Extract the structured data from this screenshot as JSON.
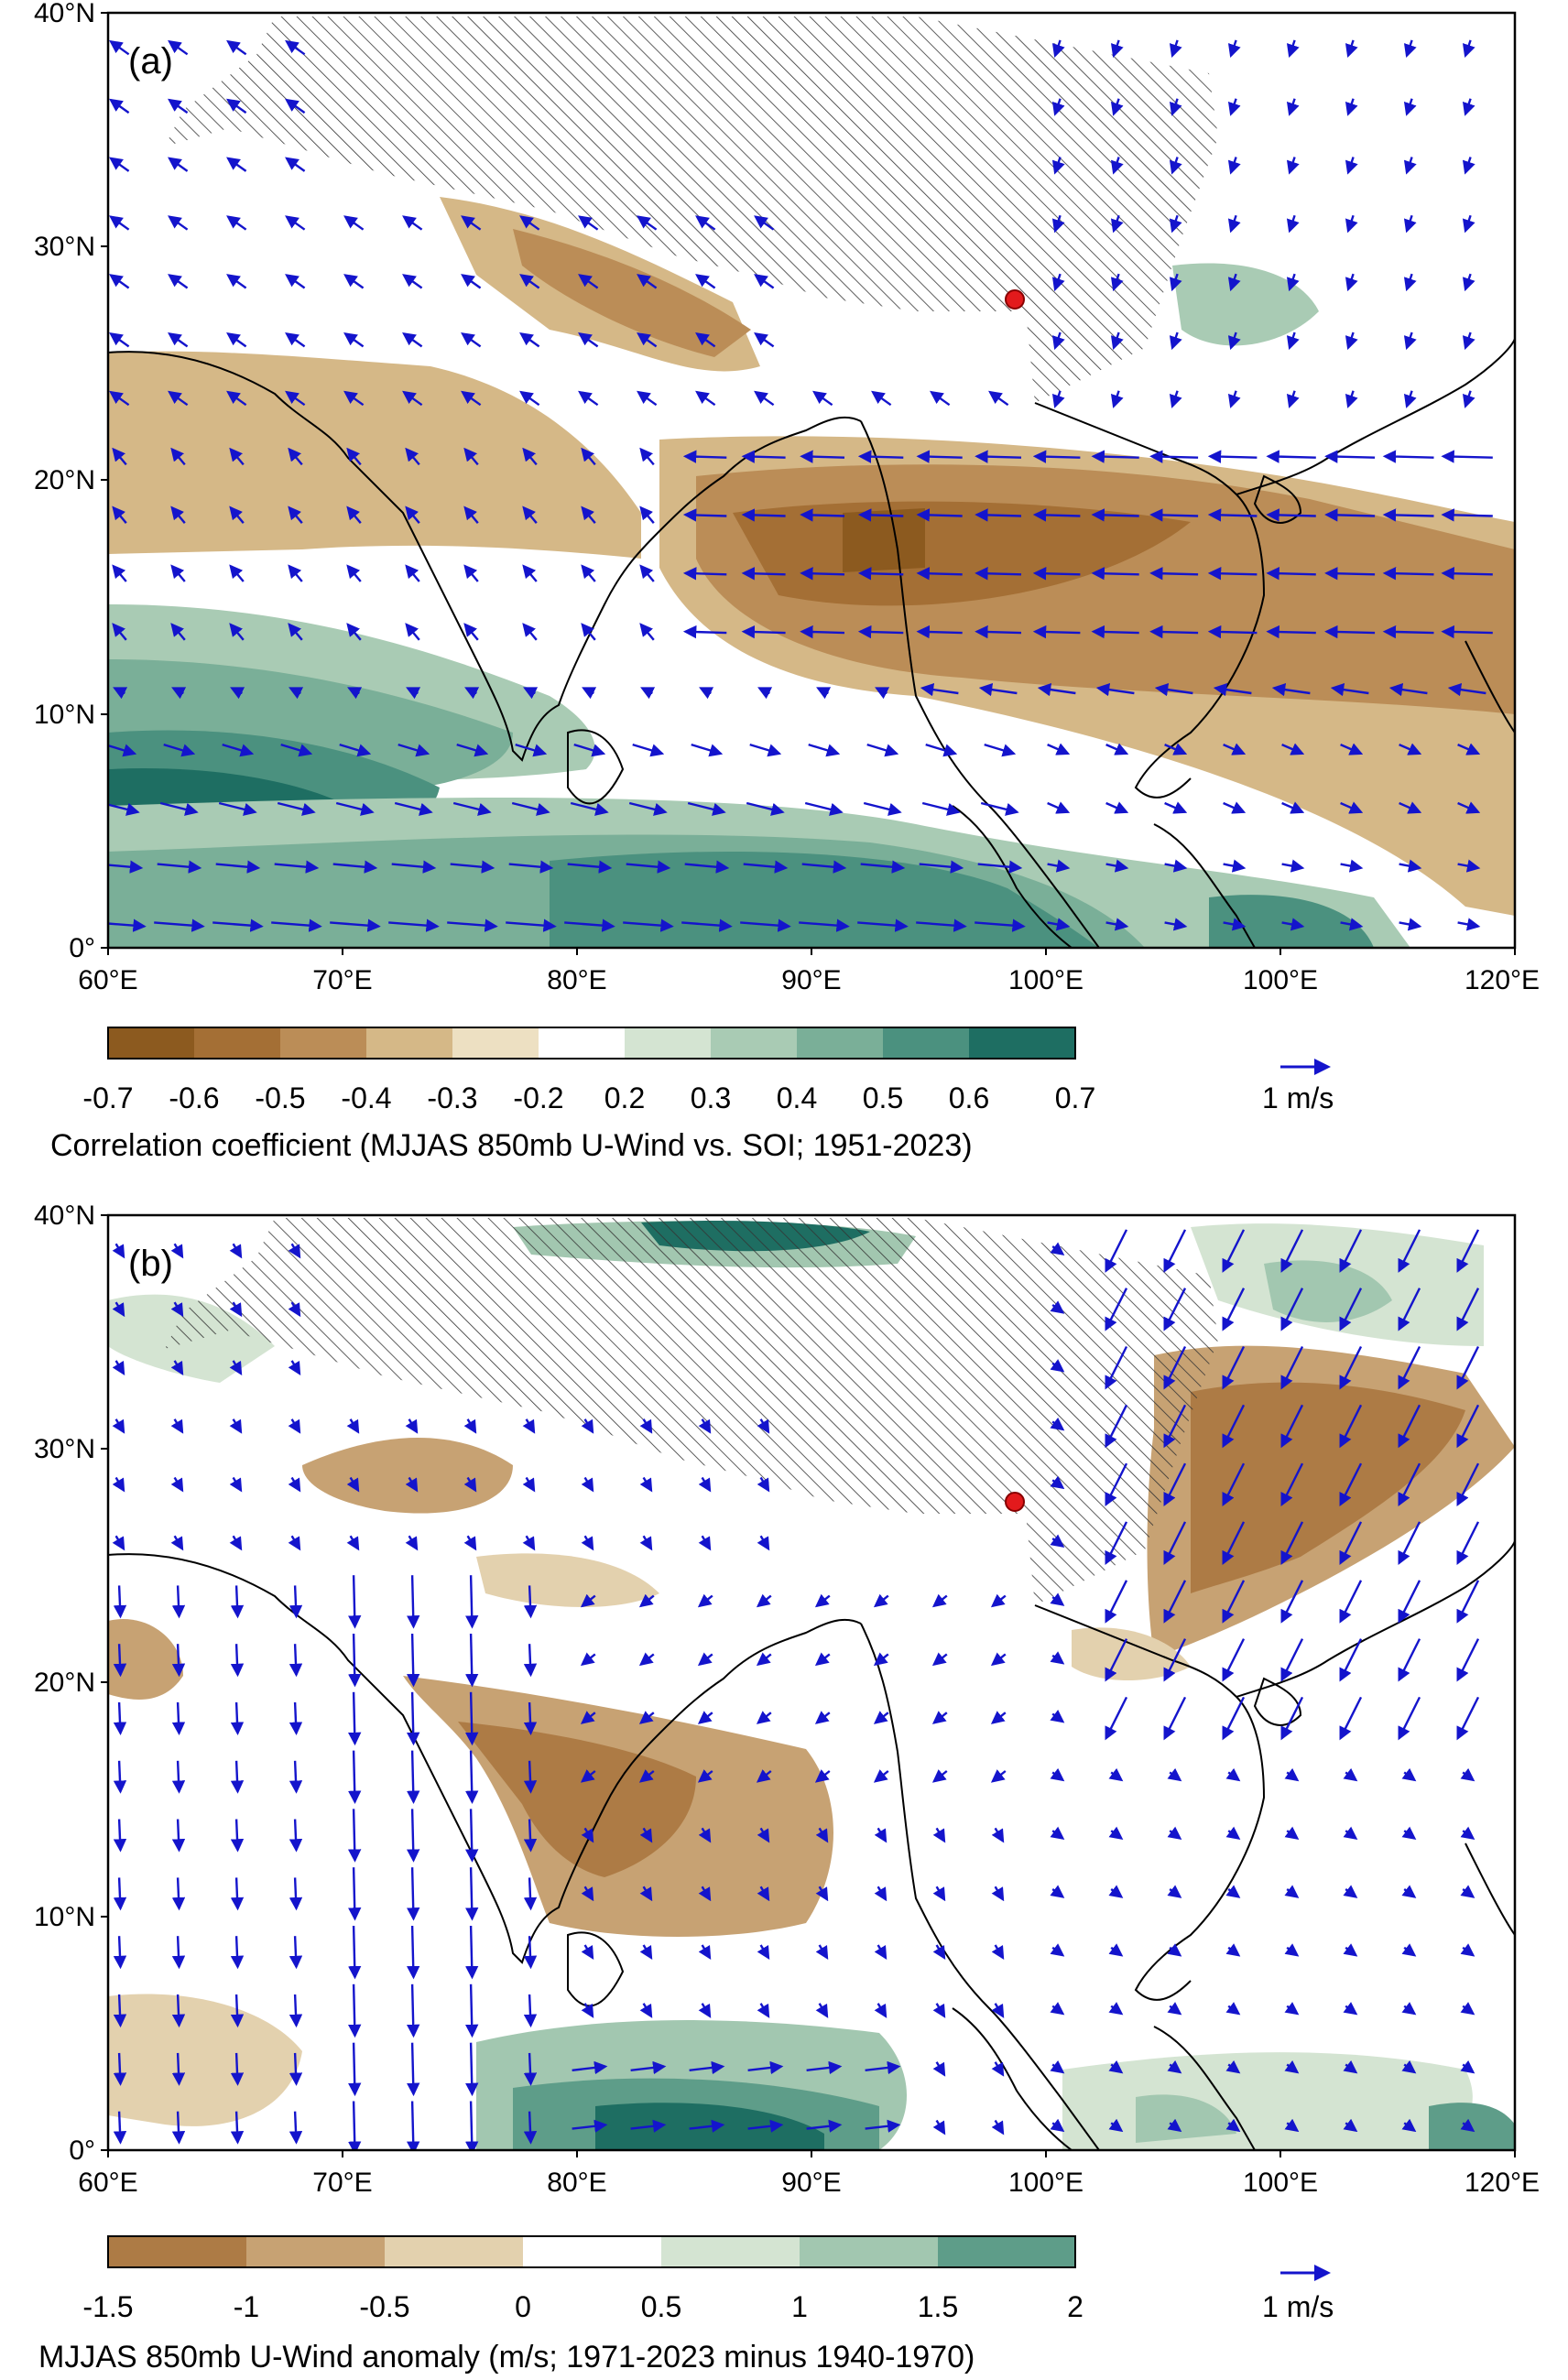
{
  "palette": {
    "brown": [
      "#8c5a1f",
      "#a46f35",
      "#bb8d57",
      "#d5b887",
      "#ede0c2"
    ],
    "green": [
      "#d4e4d2",
      "#a9cbb4",
      "#7aaf98",
      "#4b917f",
      "#1e6e62"
    ],
    "brown_b": [
      "#ad7b45",
      "#c7a273",
      "#e3d1ae"
    ],
    "green_b": [
      "#d4e4d2",
      "#a2c7b0",
      "#5e9d89",
      "#1e6e62"
    ],
    "arrow": "#1414cc",
    "marker": "#e31a1c"
  },
  "panels": [
    {
      "label": "(a)",
      "lat_labels": [
        "40°N",
        "30°N",
        "20°N",
        "10°N",
        "0°"
      ],
      "lon_labels": [
        "60°E",
        "70°E",
        "80°E",
        "90°E",
        "100°E",
        "100°E",
        "120°E"
      ],
      "colorbar": {
        "ticks": [
          "-0.7",
          "-0.6",
          "-0.5",
          "-0.4",
          "-0.3",
          "-0.2",
          "0.2",
          "0.3",
          "0.4",
          "0.5",
          "0.6",
          "0.7"
        ],
        "title": "Correlation coefficient (MJJAS 850mb U-Wind vs. SOI; 1951-2023)",
        "reference_label": "1 m/s"
      },
      "wind_pattern": "westward-east-of-85E, eastward-south-of-10N",
      "marker": {
        "lat": 27.8,
        "lon": 98.6
      }
    },
    {
      "label": "(b)",
      "lat_labels": [
        "40°N",
        "30°N",
        "20°N",
        "10°N",
        "0°"
      ],
      "lon_labels": [
        "60°E",
        "70°E",
        "80°E",
        "90°E",
        "100°E",
        "100°E",
        "120°E"
      ],
      "colorbar": {
        "ticks": [
          "-1.5",
          "-1",
          "-0.5",
          "0",
          "0.5",
          "1",
          "1.5",
          "2"
        ],
        "title": "MJJAS 850mb U-Wind anomaly (m/s; 1971-2023 minus 1940-1970)",
        "reference_label": "1 m/s"
      },
      "wind_pattern": "southward-over-arabian-sea, southwest-over-south-china",
      "marker": {
        "lat": 27.8,
        "lon": 98.6
      }
    }
  ]
}
